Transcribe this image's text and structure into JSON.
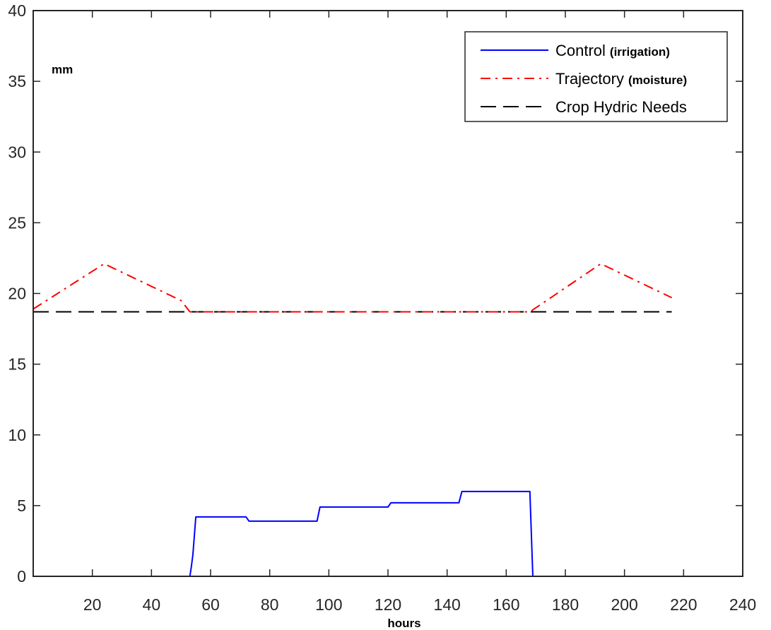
{
  "chart_data": {
    "type": "line",
    "title": "",
    "xlabel": "hours",
    "ylabel": "mm",
    "xlim": [
      0,
      240
    ],
    "ylim": [
      0,
      40
    ],
    "grid": false,
    "legend_position": "top-right",
    "xticks": [
      "20",
      "40",
      "60",
      "80",
      "100",
      "120",
      "140",
      "160",
      "180",
      "200",
      "220",
      "240"
    ],
    "yticks": [
      "0",
      "5",
      "10",
      "15",
      "20",
      "25",
      "30",
      "35",
      "40"
    ],
    "series": [
      {
        "name": "Control",
        "name_note": "(irrigation)",
        "color": "#0000ff",
        "style": "solid",
        "x": [
          0,
          53,
          53.5,
          54,
          55,
          72,
          73,
          96,
          97,
          120,
          121,
          144,
          145,
          168,
          169,
          216
        ],
        "y": [
          0,
          0,
          0.7,
          1.5,
          4.2,
          4.2,
          3.9,
          3.9,
          4.9,
          4.9,
          5.2,
          5.2,
          6.0,
          6.0,
          0,
          0
        ]
      },
      {
        "name": "Trajectory",
        "name_note": "(moisture)",
        "color": "#ff0000",
        "style": "dashdot",
        "x": [
          0,
          24,
          50,
          53,
          168,
          192,
          216
        ],
        "y": [
          18.9,
          22.1,
          19.5,
          18.7,
          18.7,
          22.1,
          19.7
        ]
      },
      {
        "name": "Crop Hydric Needs",
        "name_note": "",
        "color": "#000000",
        "style": "dashed",
        "x": [
          0,
          216
        ],
        "y": [
          18.7,
          18.7
        ]
      }
    ]
  }
}
